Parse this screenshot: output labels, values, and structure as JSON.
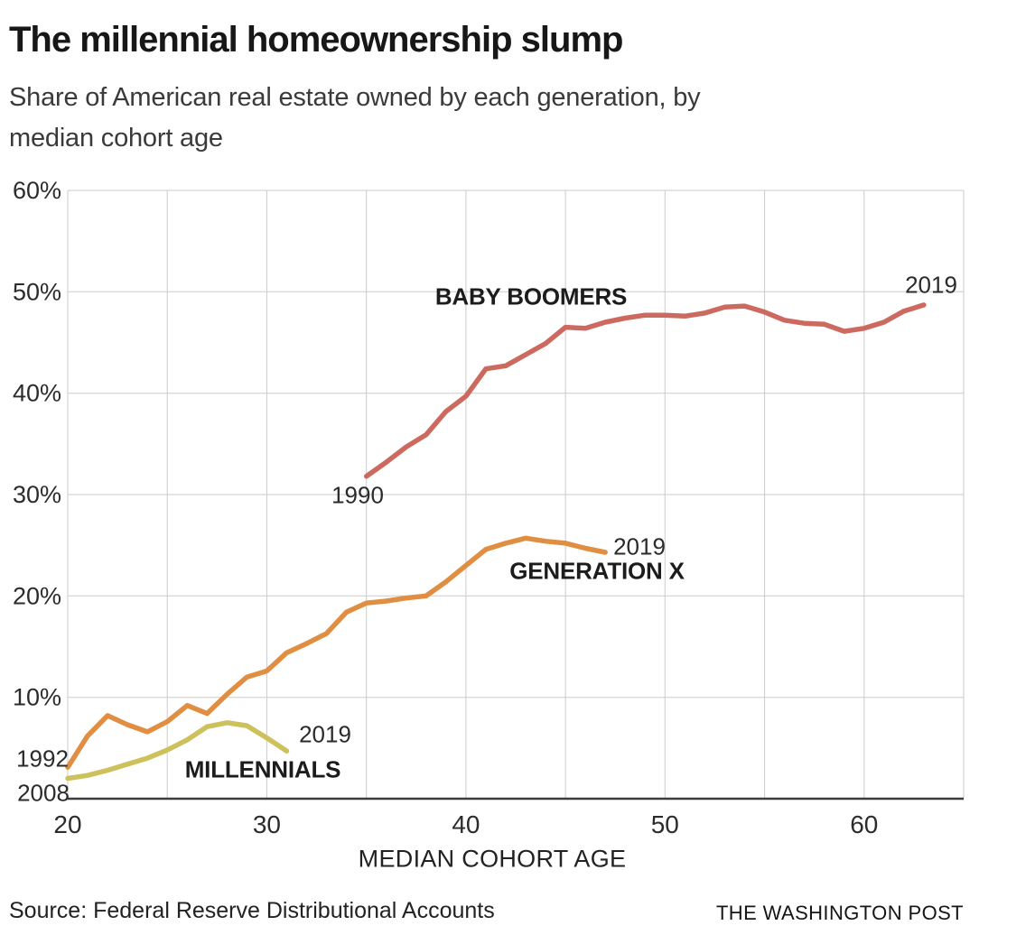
{
  "header": {
    "title": "The millennial homeownership slump",
    "subtitle_line1": "Share of American real estate owned by each generation, by",
    "subtitle_line2": "median cohort age"
  },
  "chart_data": {
    "type": "line",
    "title": "The millennial homeownership slump",
    "subtitle": "Share of American real estate owned by each generation, by median cohort age",
    "xlabel": "MEDIAN COHORT AGE",
    "ylabel": "",
    "xlim": [
      20,
      65
    ],
    "ylim": [
      0,
      60
    ],
    "grid": true,
    "legend": "inline-labels",
    "x_gridlines": [
      20,
      25,
      30,
      35,
      40,
      45,
      50,
      55,
      60,
      65
    ],
    "y_gridlines": [
      10,
      20,
      30,
      40,
      50,
      60
    ],
    "x_ticks": [
      20,
      30,
      40,
      50,
      60
    ],
    "x_tick_labels": [
      "20",
      "30",
      "40",
      "50",
      "60"
    ],
    "y_ticks": [
      10,
      20,
      30,
      40,
      50,
      60
    ],
    "y_tick_labels": [
      "10%",
      "20%",
      "30%",
      "40%",
      "50%",
      "60%"
    ],
    "series": [
      {
        "name": "BABY BOOMERS",
        "color": "#cd6a5f",
        "start_year": "1990",
        "end_year": "2019",
        "ages": [
          35,
          36,
          37,
          38,
          39,
          40,
          41,
          42,
          43,
          44,
          45,
          46,
          47,
          48,
          49,
          50,
          51,
          52,
          53,
          54,
          55,
          56,
          57,
          58,
          59,
          60,
          61,
          62,
          63
        ],
        "values": [
          31.8,
          33.2,
          34.7,
          35.9,
          38.2,
          39.7,
          42.4,
          42.7,
          43.8,
          44.9,
          46.5,
          46.4,
          47.0,
          47.4,
          47.7,
          47.7,
          47.6,
          47.9,
          48.5,
          48.6,
          48.0,
          47.2,
          46.9,
          46.8,
          46.1,
          46.4,
          47.0,
          48.1,
          48.7
        ]
      },
      {
        "name": "GENERATION X",
        "color": "#e08e41",
        "start_year": "1992",
        "end_year": "2019",
        "ages": [
          20,
          21,
          22,
          23,
          24,
          25,
          26,
          27,
          28,
          29,
          30,
          31,
          32,
          33,
          34,
          35,
          36,
          37,
          38,
          39,
          40,
          41,
          42,
          43,
          44,
          45,
          46,
          47
        ],
        "values": [
          3.1,
          6.2,
          8.2,
          7.3,
          6.6,
          7.6,
          9.2,
          8.4,
          10.3,
          12.0,
          12.6,
          14.4,
          15.3,
          16.3,
          18.4,
          19.3,
          19.5,
          19.8,
          20.0,
          21.4,
          23.0,
          24.6,
          25.2,
          25.7,
          25.4,
          25.2,
          24.7,
          24.3
        ]
      },
      {
        "name": "MILLENNIALS",
        "color": "#cdc15c",
        "start_year": "2008",
        "end_year": "2019",
        "ages": [
          20,
          21,
          22,
          23,
          24,
          25,
          26,
          27,
          28,
          29,
          30,
          31
        ],
        "values": [
          2.0,
          2.3,
          2.8,
          3.4,
          4.0,
          4.8,
          5.8,
          7.1,
          7.5,
          7.2,
          6.0,
          4.7
        ]
      }
    ]
  },
  "footer": {
    "source": "Source: Federal Reserve Distributional Accounts",
    "credit": "THE WASHINGTON POST"
  }
}
